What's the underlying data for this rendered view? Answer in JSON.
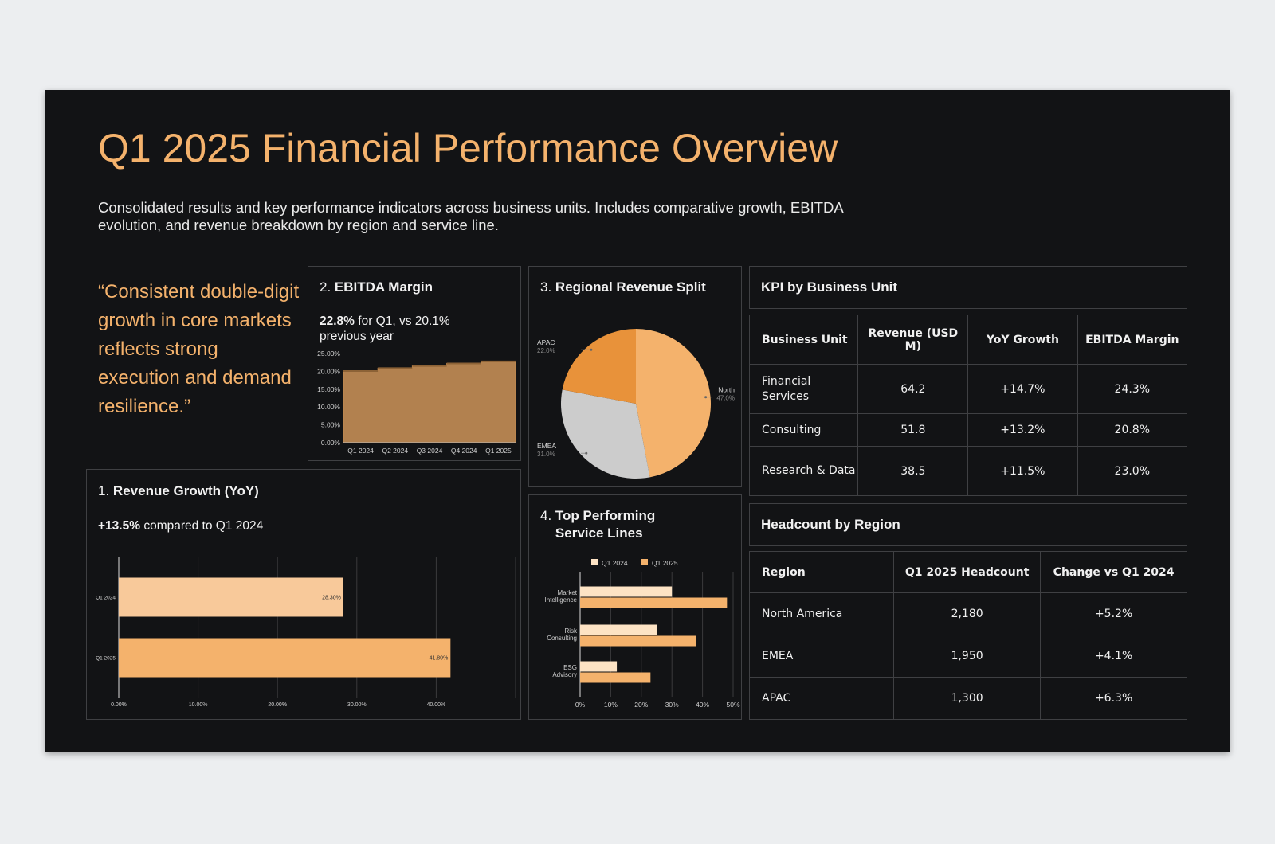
{
  "header": {
    "title": "Q1 2025 Financial Performance Overview",
    "subtitle": "Consolidated results and key performance indicators across business units. Includes comparative growth, EBITDA evolution, and revenue breakdown by region and service line."
  },
  "quote": "“Consistent double-digit growth in core markets reflects strong execution and demand resilience.”",
  "colors": {
    "accent": "#f4b26c",
    "background": "#121315",
    "light_peach": "#f8c99a",
    "area_fill": "#b2814f",
    "pie_dark": "#e8923a",
    "pie_grey": "#cccccc"
  },
  "ebitda": {
    "title_num": "2.",
    "title_text": "EBITDA Margin",
    "value": "22.8%",
    "rest": "for Q1, vs 20.1% previous year"
  },
  "regional": {
    "title_num": "3.",
    "title_text": "Regional Revenue Split"
  },
  "revenue": {
    "title_num": "1.",
    "title_text": "Revenue Growth (YoY)",
    "value": "+13.5%",
    "rest": "compared to Q1 2024"
  },
  "service": {
    "title_num": "4.",
    "title_text": "Top Performing Service Lines"
  },
  "chart_data": [
    {
      "id": "ebitda",
      "type": "area",
      "categories": [
        "Q1 2024",
        "Q2 2024",
        "Q3 2024",
        "Q4 2024",
        "Q1 2025"
      ],
      "values": [
        20.1,
        20.9,
        21.5,
        22.2,
        22.8
      ],
      "ylim": [
        0,
        25
      ],
      "yticks": [
        "0.00%",
        "5.00%",
        "10.00%",
        "15.00%",
        "20.00%",
        "25.00%"
      ],
      "grid": false
    },
    {
      "id": "regional",
      "type": "pie",
      "slices": [
        {
          "label": "North",
          "value": 47.0,
          "pct": "47.0%"
        },
        {
          "label": "EMEA",
          "value": 31.0,
          "pct": "31.0%"
        },
        {
          "label": "APAC",
          "value": 22.0,
          "pct": "22.0%"
        }
      ]
    },
    {
      "id": "revenue",
      "type": "bar",
      "orientation": "horizontal",
      "categories": [
        "Q1 2024",
        "Q1 2025"
      ],
      "values": [
        28.3,
        41.8
      ],
      "data_labels": [
        "28.30%",
        "41.80%"
      ],
      "xlim": [
        0,
        50
      ],
      "xticks": [
        "0.00%",
        "10.00%",
        "20.00%",
        "30.00%",
        "40.00%"
      ],
      "grid": true
    },
    {
      "id": "service",
      "type": "bar",
      "orientation": "horizontal",
      "categories": [
        [
          "Market",
          "Intelligence"
        ],
        [
          "Risk",
          "Consulting"
        ],
        [
          "ESG",
          "Advisory"
        ]
      ],
      "series": [
        {
          "name": "Q1 2024",
          "values": [
            30,
            25,
            12
          ]
        },
        {
          "name": "Q1 2025",
          "values": [
            48,
            38,
            23
          ]
        }
      ],
      "xlim": [
        0,
        50
      ],
      "xticks": [
        "0%",
        "10%",
        "20%",
        "30%",
        "40%",
        "50%"
      ],
      "legend": "top",
      "grid": true
    }
  ],
  "kpi": {
    "title": "KPI by Business Unit",
    "headers": [
      "Business Unit",
      "Revenue (USD M)",
      "YoY Growth",
      "EBITDA Margin"
    ],
    "rows": [
      [
        "Financial Services",
        "64.2",
        "+14.7%",
        "24.3%"
      ],
      [
        "Consulting",
        "51.8",
        "+13.2%",
        "20.8%"
      ],
      [
        "Research & Data",
        "38.5",
        "+11.5%",
        "23.0%"
      ]
    ]
  },
  "headcount": {
    "title": "Headcount by Region",
    "headers": [
      "Region",
      "Q1 2025 Headcount",
      "Change vs Q1 2024"
    ],
    "rows": [
      [
        "North America",
        "2,180",
        "+5.2%"
      ],
      [
        "EMEA",
        "1,950",
        "+4.1%"
      ],
      [
        "APAC",
        "1,300",
        "+6.3%"
      ]
    ]
  }
}
